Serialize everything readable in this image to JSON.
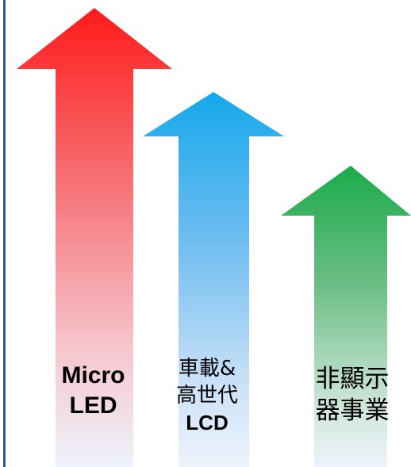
{
  "arrows": [
    {
      "id": "micro-led",
      "color": "#ff1a1a",
      "label_lines": [
        "Micro",
        "LED"
      ]
    },
    {
      "id": "automotive-lcd",
      "color": "#1aa3e8",
      "label_lines": [
        "車載&",
        "高世代",
        "LCD"
      ]
    },
    {
      "id": "non-display",
      "color": "#1fa84a",
      "label_lines": [
        "非顯示",
        "器事業"
      ]
    }
  ]
}
